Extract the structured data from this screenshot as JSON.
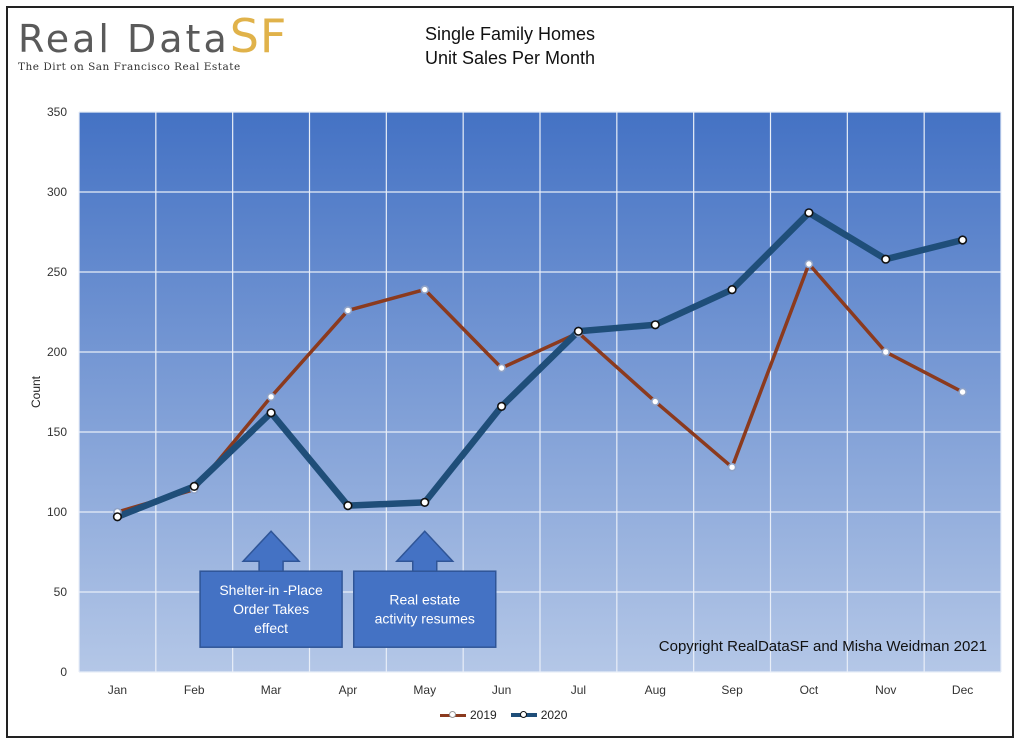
{
  "logo": {
    "main": "Real Data",
    "sf": "SF",
    "tagline": "The Dirt on San Francisco Real Estate"
  },
  "colors": {
    "plot_top": "#4472c4",
    "plot_bottom": "#b4c7e7",
    "series_2019": "#8b3a1e",
    "series_2020": "#1f4e79",
    "callout_fill": "#4472c4",
    "logo_gold": "#e0b24a"
  },
  "chart_data": {
    "type": "line",
    "title": "Single Family Homes",
    "subtitle": "Unit Sales Per Month",
    "xlabel": "",
    "ylabel": "Count",
    "ylim": [
      0,
      350
    ],
    "yticks": [
      0,
      50,
      100,
      150,
      200,
      250,
      300,
      350
    ],
    "grid": true,
    "legend_position": "bottom",
    "categories": [
      "Jan",
      "Feb",
      "Mar",
      "Apr",
      "May",
      "Jun",
      "Jul",
      "Aug",
      "Sep",
      "Oct",
      "Nov",
      "Dec"
    ],
    "series": [
      {
        "name": "2019",
        "values": [
          100,
          114,
          172,
          226,
          239,
          190,
          212,
          169,
          128,
          255,
          200,
          175
        ]
      },
      {
        "name": "2020",
        "values": [
          97,
          116,
          162,
          104,
          106,
          166,
          213,
          217,
          239,
          287,
          258,
          270
        ]
      }
    ],
    "annotations": [
      {
        "text": "Shelter-in -Place Order Takes effect",
        "month": "Mar"
      },
      {
        "text": "Real estate activity resumes",
        "month": "May"
      }
    ],
    "copyright": "Copyright RealDataSF and Misha Weidman 2021"
  }
}
